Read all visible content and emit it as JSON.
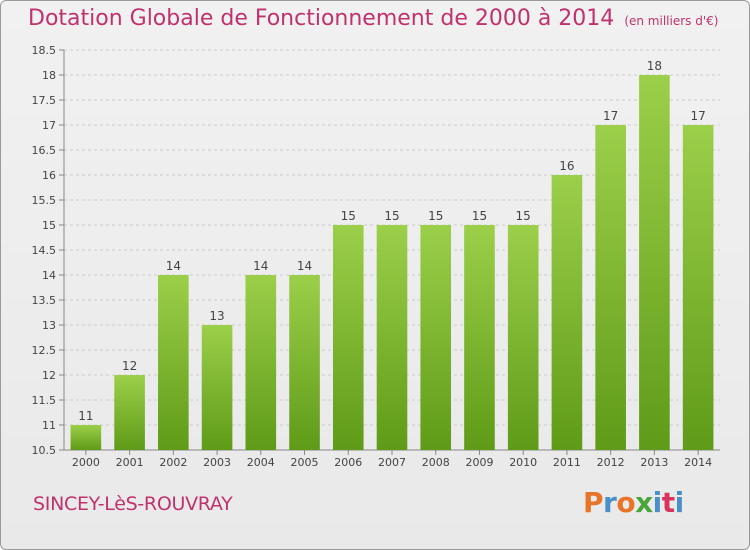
{
  "title": "Dotation Globale de Fonctionnement de 2000 à 2014",
  "unit_note": "(en milliers d'€)",
  "commune": "SINCEY-LèS-ROUVRAY",
  "logo": {
    "text": "Proxiti",
    "letter_colors": [
      "#e8742a",
      "#4a90c8",
      "#e8742a",
      "#4aa53a",
      "#4a90c8",
      "#d8345c",
      "#4a90c8"
    ]
  },
  "colors": {
    "title": "#c0326e",
    "bar_light": "#9ccf4a",
    "bar_dark": "#5f9b18",
    "grid": "#cccccc"
  },
  "chart_data": {
    "type": "bar",
    "categories": [
      "2000",
      "2001",
      "2002",
      "2003",
      "2004",
      "2005",
      "2006",
      "2007",
      "2008",
      "2009",
      "2010",
      "2011",
      "2012",
      "2013",
      "2014"
    ],
    "values": [
      11,
      12,
      14,
      13,
      14,
      14,
      15,
      15,
      15,
      15,
      15,
      16,
      17,
      18,
      17
    ],
    "data_labels": [
      "11",
      "12",
      "14",
      "13",
      "14",
      "14",
      "15",
      "15",
      "15",
      "15",
      "15",
      "16",
      "17",
      "18",
      "17"
    ],
    "ylim": [
      10.5,
      18.5
    ],
    "yticks": [
      10.5,
      11,
      11.5,
      12,
      12.5,
      13,
      13.5,
      14,
      14.5,
      15,
      15.5,
      16,
      16.5,
      17,
      17.5,
      18,
      18.5
    ],
    "ytick_labels": [
      "10.5",
      "11",
      "11.5",
      "12",
      "12.5",
      "13",
      "13.5",
      "14",
      "14.5",
      "15",
      "15.5",
      "16",
      "16.5",
      "17",
      "17.5",
      "18",
      "18.5"
    ],
    "grid": "horizontal dashed",
    "xlabel": "",
    "ylabel": ""
  }
}
